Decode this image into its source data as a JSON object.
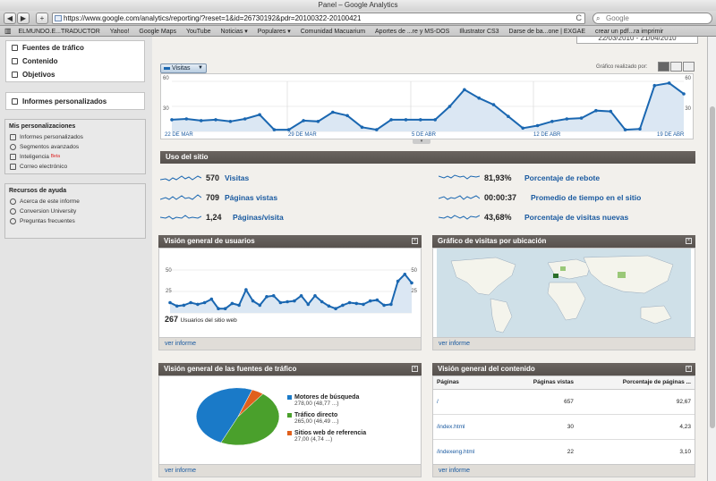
{
  "browser": {
    "window_title": "Panel – Google Analytics",
    "back": "◀",
    "forward": "▶",
    "new_tab": "+",
    "url": "https://www.google.com/analytics/reporting/?reset=1&id=26730192&pdr=20100322-20100421",
    "reload": "C",
    "search_placeholder": "Google",
    "bookmarks": [
      "ELMUNDO.E...TRADUCTOR",
      "Yahoo!",
      "Google Maps",
      "YouTube",
      "Noticias ▾",
      "Populares ▾",
      "Comunidad Macuarium",
      "Aportes de ...re y MS-DOS",
      "Illustrator CS3",
      "Darse de ba...one | EXGAE",
      "crear un pdf...ra imprimir"
    ]
  },
  "sidebar": {
    "nav": [
      "Fuentes de tráfico",
      "Contenido",
      "Objetivos"
    ],
    "custom_reports": "Informes personalizados",
    "my_custom": {
      "heading": "Mis personalizaciones",
      "items": [
        "Informes personalizados",
        "Segmentos avanzados",
        "Inteligencia",
        "Correo electrónico"
      ],
      "beta": "Beta"
    },
    "help": {
      "heading": "Recursos de ayuda",
      "items": [
        "Acerca de este informe",
        "Conversion University",
        "Preguntas frecuentes"
      ]
    }
  },
  "header": {
    "date_range": "22/03/2010 - 21/04/2010",
    "metric_select": "Visitas",
    "graph_label": "Gráfico realizado por:"
  },
  "main_chart": {
    "y_max_label": "60",
    "y_mid_label": "30",
    "x_labels": [
      "22 DE MAR",
      "29 DE MAR",
      "5 DE ABR",
      "12 DE ABR",
      "19 DE ABR"
    ]
  },
  "chart_data": [
    {
      "type": "line",
      "series": [
        {
          "name": "Visitas",
          "values": [
            14,
            15,
            13,
            14,
            12,
            15,
            20,
            2,
            2,
            13,
            12,
            23,
            19,
            5,
            2,
            14,
            14,
            14,
            14,
            30,
            50,
            40,
            32,
            18,
            4,
            7,
            12,
            15,
            16,
            25,
            24,
            2,
            3,
            55,
            58,
            45
          ]
        }
      ],
      "ylim": [
        0,
        60
      ]
    },
    {
      "type": "line",
      "series": [
        {
          "name": "Usuarios",
          "values": [
            12,
            8,
            9,
            12,
            10,
            12,
            16,
            5,
            5,
            11,
            9,
            27,
            14,
            9,
            19,
            20,
            12,
            13,
            14,
            20,
            10,
            20,
            13,
            8,
            5,
            9,
            12,
            11,
            10,
            14,
            15,
            9,
            10,
            37,
            45,
            35
          ]
        }
      ],
      "ylim": [
        0,
        50
      ]
    },
    {
      "type": "pie",
      "categories": [
        "Motores de búsqueda",
        "Tráfico directo",
        "Sitios web de referencia"
      ],
      "values": [
        48.77,
        46.49,
        4.74
      ],
      "colors": [
        "#1a7ac8",
        "#4aa02c",
        "#e0601c"
      ]
    }
  ],
  "site_usage": {
    "title": "Uso del sitio",
    "stats": [
      {
        "value": "570",
        "label": "Visitas"
      },
      {
        "value": "709",
        "label": "Páginas vistas"
      },
      {
        "value": "1,24",
        "label": "Páginas/visita"
      },
      {
        "value": "81,93%",
        "label": "Porcentaje de rebote"
      },
      {
        "value": "00:00:37",
        "label": "Promedio de tiempo en el sitio"
      },
      {
        "value": "43,68%",
        "label": "Porcentaje de visitas nuevas"
      }
    ]
  },
  "users_panel": {
    "title": "Visión general de usuarios",
    "y_top": "50",
    "y_mid": "25",
    "count": "267",
    "count_label": "Usuarios del sitio web",
    "footer": "ver informe"
  },
  "map_panel": {
    "title": "Gráfico de visitas por ubicación",
    "footer": "ver informe"
  },
  "traffic_panel": {
    "title": "Visión general de las fuentes de tráfico",
    "legend": [
      {
        "name": "Motores de búsqueda",
        "sub": "278,00 (48,77 ...)"
      },
      {
        "name": "Tráfico directo",
        "sub": "265,00 (46,49 ...)"
      },
      {
        "name": "Sitios web de referencia",
        "sub": "27,00 (4,74 ...)"
      }
    ],
    "footer": "ver informe"
  },
  "content_panel": {
    "title": "Visión general del contenido",
    "headers": [
      "Páginas",
      "Páginas vistas",
      "Porcentaje de páginas ..."
    ],
    "rows": [
      [
        "/",
        "657",
        "92,67"
      ],
      [
        "/index.html",
        "30",
        "4,23"
      ],
      [
        "/indexeng.html",
        "22",
        "3,10"
      ]
    ],
    "footer": "ver informe"
  }
}
